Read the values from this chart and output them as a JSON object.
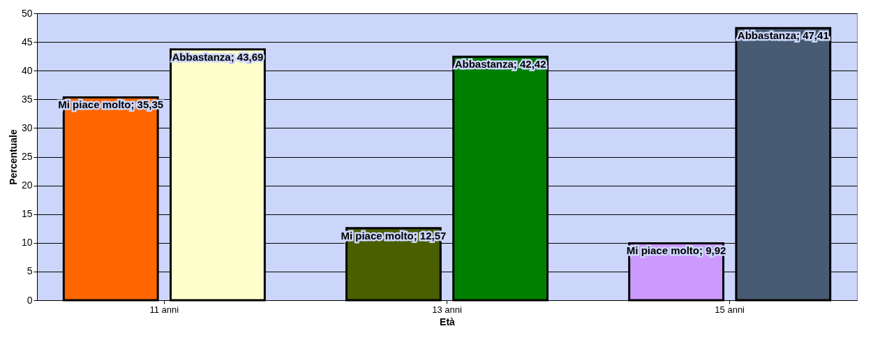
{
  "chart_data": {
    "type": "bar",
    "xlabel": "Età",
    "ylabel": "Percentuale",
    "categories": [
      "11 anni",
      "13 anni",
      "15 anni"
    ],
    "series": [
      {
        "colors": [
          "#ff6600",
          "#4a5f00",
          "#cc99ff"
        ],
        "values": [
          35.35,
          12.57,
          9.92
        ],
        "value_labels": [
          "Mi piace molto; 35,35",
          "Mi piace molto; 12,57",
          "Mi piace molto; 9,92"
        ]
      },
      {
        "colors": [
          "#ffffcc",
          "#008000",
          "#475b73"
        ],
        "values": [
          43.69,
          42.42,
          47.41
        ],
        "value_labels": [
          "Abbastanza; 43,69",
          "Abbastanza; 42,42",
          "Abbastanza; 47,41"
        ]
      }
    ],
    "ylim": [
      0,
      50
    ],
    "yticks": [
      0,
      5,
      10,
      15,
      20,
      25,
      30,
      35,
      40,
      45,
      50
    ],
    "grid": "y"
  }
}
